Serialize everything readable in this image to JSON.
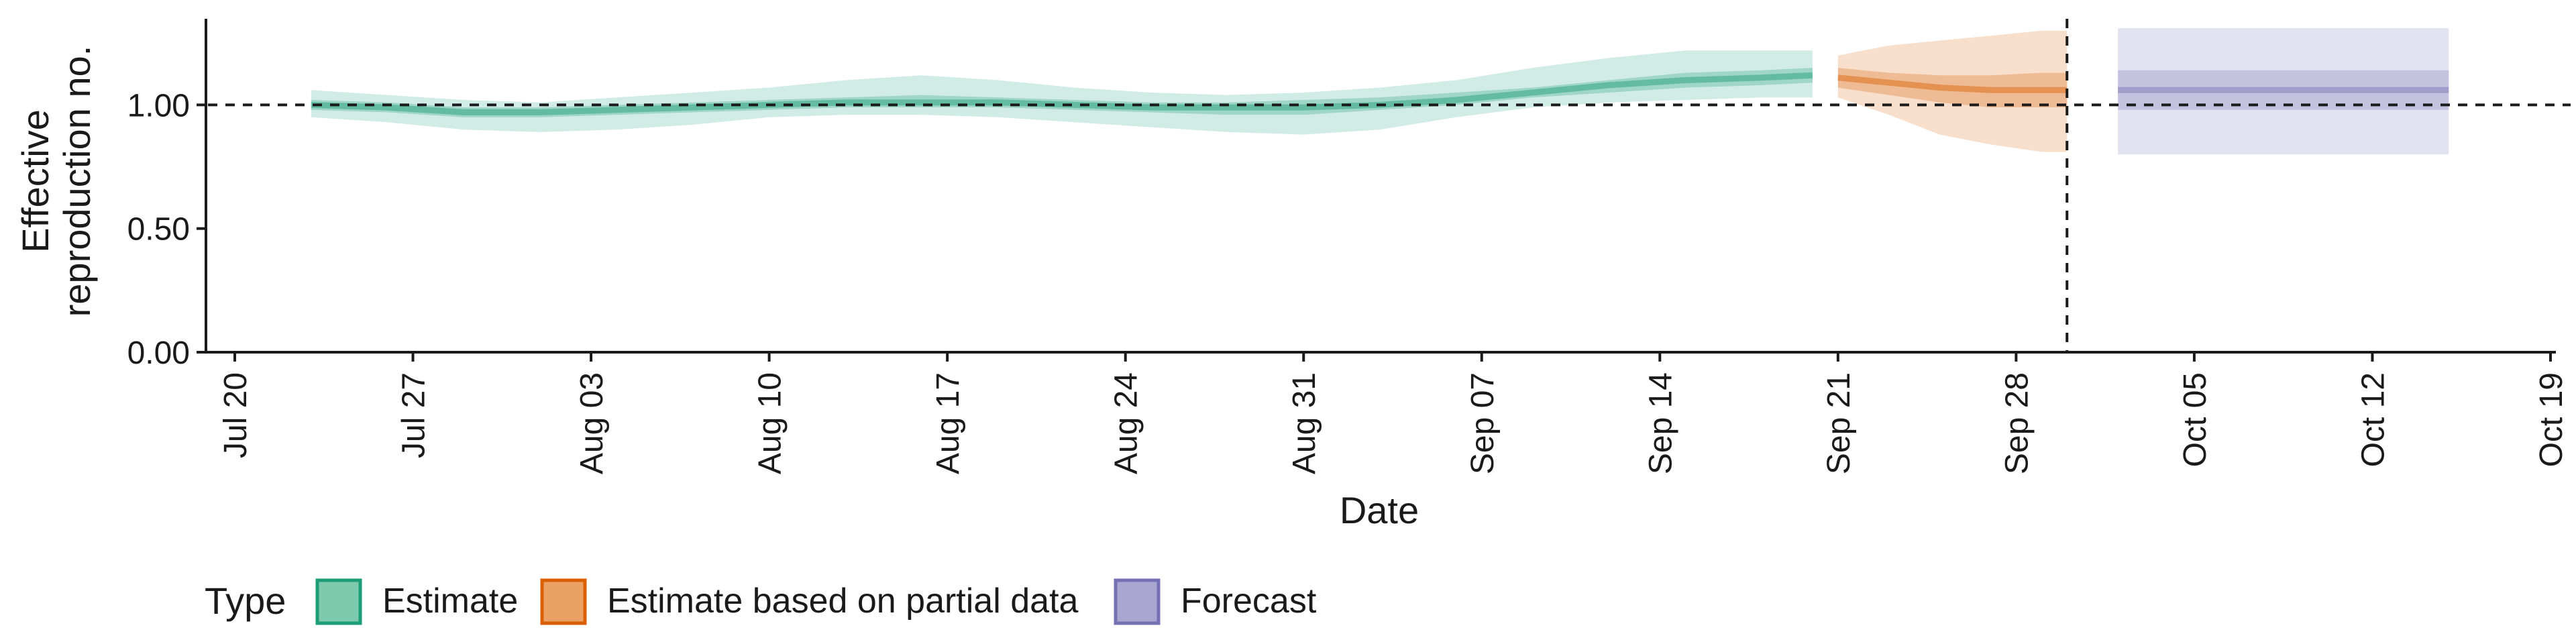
{
  "chart_data": {
    "type": "area",
    "xlabel": "Date",
    "ylabel_lines": [
      "Effective",
      "reproduction no."
    ],
    "x_ticks": [
      "Jul 20",
      "Jul 27",
      "Aug 03",
      "Aug 10",
      "Aug 17",
      "Aug 24",
      "Aug 31",
      "Sep 07",
      "Sep 14",
      "Sep 21",
      "Sep 28",
      "Oct 05",
      "Oct 12",
      "Oct 19"
    ],
    "x_tick_dates": [
      "2020-07-20",
      "2020-07-27",
      "2020-08-03",
      "2020-08-10",
      "2020-08-17",
      "2020-08-24",
      "2020-08-31",
      "2020-09-07",
      "2020-09-14",
      "2020-09-21",
      "2020-09-28",
      "2020-10-05",
      "2020-10-12",
      "2020-10-19"
    ],
    "xlim": [
      "2020-07-20",
      "2020-10-19"
    ],
    "y_ticks": [
      "0.00",
      "0.50",
      "1.00"
    ],
    "ylim": [
      0,
      1.37
    ],
    "hline": 1.0,
    "vline": "2020-09-30",
    "legend": {
      "title": "Type",
      "placement": "bottom",
      "entries": [
        {
          "label": "Estimate",
          "fill": "#1b9e77"
        },
        {
          "label": "Estimate based on partial data",
          "fill": "#d95f02"
        },
        {
          "label": "Forecast",
          "fill": "#7570b3"
        }
      ]
    },
    "series": [
      {
        "type": "Estimate",
        "color": "#1b9e77",
        "x": [
          "2020-07-23",
          "2020-07-26",
          "2020-07-29",
          "2020-08-01",
          "2020-08-04",
          "2020-08-07",
          "2020-08-10",
          "2020-08-13",
          "2020-08-16",
          "2020-08-19",
          "2020-08-22",
          "2020-08-25",
          "2020-08-28",
          "2020-08-31",
          "2020-09-03",
          "2020-09-06",
          "2020-09-09",
          "2020-09-12",
          "2020-09-15",
          "2020-09-18",
          "2020-09-20"
        ],
        "median": [
          1.0,
          0.99,
          0.97,
          0.97,
          0.98,
          0.99,
          1.0,
          1.01,
          1.01,
          1.01,
          1.0,
          0.99,
          0.99,
          0.99,
          1.0,
          1.02,
          1.05,
          1.08,
          1.1,
          1.11,
          1.12
        ],
        "lower_50": [
          0.98,
          0.97,
          0.95,
          0.95,
          0.96,
          0.97,
          0.98,
          0.99,
          0.99,
          0.99,
          0.98,
          0.97,
          0.96,
          0.96,
          0.98,
          1.0,
          1.03,
          1.05,
          1.07,
          1.08,
          1.09
        ],
        "upper_50": [
          1.02,
          1.01,
          0.99,
          0.99,
          1.0,
          1.01,
          1.02,
          1.03,
          1.04,
          1.03,
          1.02,
          1.01,
          1.01,
          1.02,
          1.03,
          1.05,
          1.07,
          1.1,
          1.13,
          1.14,
          1.15
        ],
        "lower_90": [
          0.95,
          0.93,
          0.9,
          0.89,
          0.9,
          0.92,
          0.95,
          0.96,
          0.96,
          0.95,
          0.93,
          0.91,
          0.89,
          0.88,
          0.9,
          0.95,
          0.99,
          1.01,
          1.02,
          1.03,
          1.03
        ],
        "upper_90": [
          1.06,
          1.04,
          1.02,
          1.01,
          1.03,
          1.05,
          1.07,
          1.1,
          1.12,
          1.1,
          1.07,
          1.05,
          1.04,
          1.05,
          1.07,
          1.1,
          1.15,
          1.19,
          1.22,
          1.22,
          1.22
        ]
      },
      {
        "type": "Estimate based on partial data",
        "color": "#d95f02",
        "x": [
          "2020-09-21",
          "2020-09-23",
          "2020-09-25",
          "2020-09-27",
          "2020-09-29",
          "2020-09-30"
        ],
        "median": [
          1.11,
          1.09,
          1.07,
          1.06,
          1.06,
          1.06
        ],
        "lower_50": [
          1.07,
          1.04,
          1.01,
          0.99,
          0.99,
          0.99
        ],
        "upper_50": [
          1.15,
          1.13,
          1.12,
          1.12,
          1.13,
          1.13
        ],
        "lower_90": [
          1.03,
          0.96,
          0.88,
          0.84,
          0.81,
          0.81
        ],
        "upper_90": [
          1.2,
          1.24,
          1.26,
          1.28,
          1.3,
          1.3
        ]
      },
      {
        "type": "Forecast",
        "color": "#7570b3",
        "x": [
          "2020-10-02",
          "2020-10-15"
        ],
        "median": [
          1.06,
          1.06
        ],
        "lower_50": [
          0.98,
          0.98
        ],
        "upper_50": [
          1.14,
          1.14
        ],
        "lower_90": [
          0.8,
          0.8
        ],
        "upper_90": [
          1.31,
          1.31
        ]
      }
    ]
  }
}
